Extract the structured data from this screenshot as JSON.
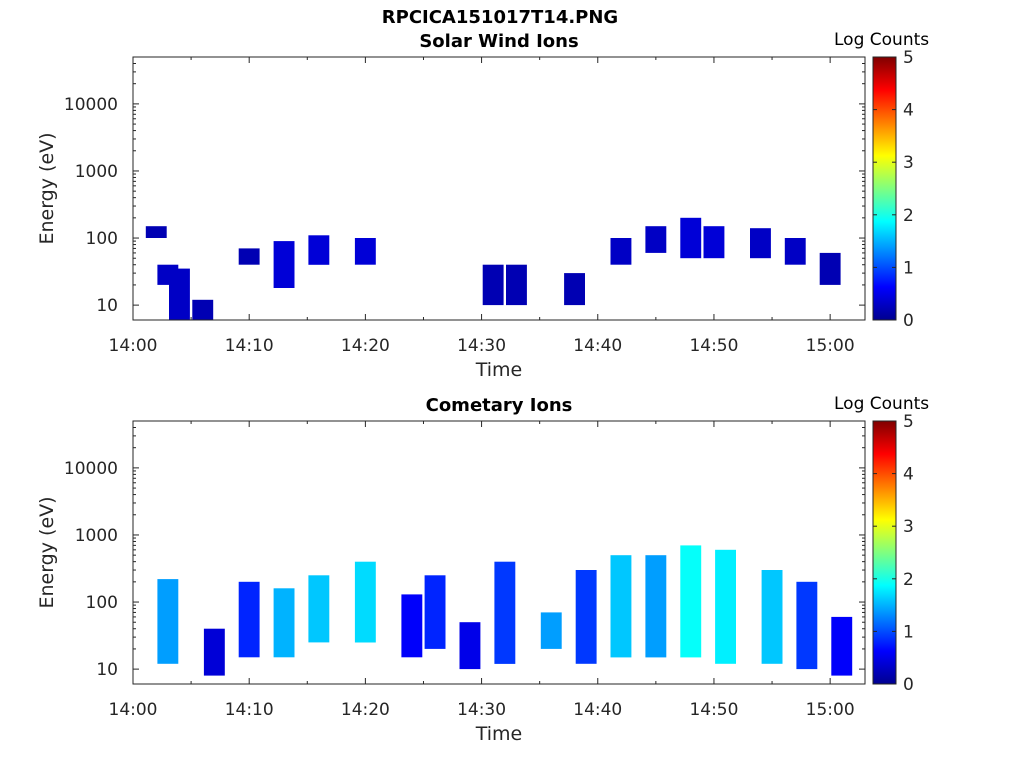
{
  "figure": {
    "title": "RPCICA151017T14.PNG"
  },
  "colorbar": {
    "label": "Log Counts",
    "ticks": [
      "0",
      "1",
      "2",
      "3",
      "4",
      "5"
    ]
  },
  "chart_data": [
    {
      "type": "heatmap",
      "title": "Solar Wind Ions",
      "xlabel": "Time",
      "ylabel": "Energy (eV)",
      "yscale": "log",
      "xlim": [
        "14:00",
        "15:03"
      ],
      "ylim": [
        6,
        50000
      ],
      "xticks": [
        "14:00",
        "14:10",
        "14:20",
        "14:30",
        "14:40",
        "14:50",
        "15:00"
      ],
      "yticks": [
        "10",
        "100",
        "1000",
        "10000"
      ],
      "colorbar_label": "Log Counts",
      "clim": [
        0,
        5
      ],
      "cells": [
        {
          "t": "14:02",
          "emin": 100,
          "emax": 150,
          "z": 0.2
        },
        {
          "t": "14:03",
          "emin": 20,
          "emax": 40,
          "z": 0.3
        },
        {
          "t": "14:04",
          "emin": 6,
          "emax": 35,
          "z": 0.3
        },
        {
          "t": "14:06",
          "emin": 6,
          "emax": 12,
          "z": 0.2
        },
        {
          "t": "14:10",
          "emin": 40,
          "emax": 70,
          "z": 0.2
        },
        {
          "t": "14:13",
          "emin": 18,
          "emax": 90,
          "z": 0.4
        },
        {
          "t": "14:16",
          "emin": 40,
          "emax": 110,
          "z": 0.4
        },
        {
          "t": "14:20",
          "emin": 40,
          "emax": 100,
          "z": 0.4
        },
        {
          "t": "14:31",
          "emin": 10,
          "emax": 40,
          "z": 0.2
        },
        {
          "t": "14:33",
          "emin": 10,
          "emax": 40,
          "z": 0.2
        },
        {
          "t": "14:38",
          "emin": 10,
          "emax": 30,
          "z": 0.2
        },
        {
          "t": "14:42",
          "emin": 40,
          "emax": 100,
          "z": 0.3
        },
        {
          "t": "14:45",
          "emin": 60,
          "emax": 150,
          "z": 0.3
        },
        {
          "t": "14:48",
          "emin": 50,
          "emax": 200,
          "z": 0.4
        },
        {
          "t": "14:50",
          "emin": 50,
          "emax": 150,
          "z": 0.4
        },
        {
          "t": "14:54",
          "emin": 50,
          "emax": 140,
          "z": 0.3
        },
        {
          "t": "14:57",
          "emin": 40,
          "emax": 100,
          "z": 0.3
        },
        {
          "t": "15:00",
          "emin": 20,
          "emax": 60,
          "z": 0.2
        }
      ]
    },
    {
      "type": "heatmap",
      "title": "Cometary Ions",
      "xlabel": "Time",
      "ylabel": "Energy (eV)",
      "yscale": "log",
      "xlim": [
        "14:00",
        "15:03"
      ],
      "ylim": [
        6,
        50000
      ],
      "xticks": [
        "14:00",
        "14:10",
        "14:20",
        "14:30",
        "14:40",
        "14:50",
        "15:00"
      ],
      "yticks": [
        "10",
        "100",
        "1000",
        "10000"
      ],
      "colorbar_label": "Log Counts",
      "clim": [
        0,
        5
      ],
      "cells": [
        {
          "t": "14:03",
          "emin": 12,
          "emax": 220,
          "z": 1.4
        },
        {
          "t": "14:07",
          "emin": 8,
          "emax": 40,
          "z": 0.4
        },
        {
          "t": "14:10",
          "emin": 15,
          "emax": 200,
          "z": 0.8
        },
        {
          "t": "14:13",
          "emin": 15,
          "emax": 160,
          "z": 1.5
        },
        {
          "t": "14:16",
          "emin": 25,
          "emax": 250,
          "z": 1.6
        },
        {
          "t": "14:20",
          "emin": 25,
          "emax": 400,
          "z": 1.7
        },
        {
          "t": "14:24",
          "emin": 15,
          "emax": 130,
          "z": 0.6
        },
        {
          "t": "14:26",
          "emin": 20,
          "emax": 250,
          "z": 0.8
        },
        {
          "t": "14:29",
          "emin": 10,
          "emax": 50,
          "z": 0.5
        },
        {
          "t": "14:32",
          "emin": 12,
          "emax": 400,
          "z": 0.9
        },
        {
          "t": "14:36",
          "emin": 20,
          "emax": 70,
          "z": 1.4
        },
        {
          "t": "14:39",
          "emin": 12,
          "emax": 300,
          "z": 0.9
        },
        {
          "t": "14:42",
          "emin": 15,
          "emax": 500,
          "z": 1.6
        },
        {
          "t": "14:45",
          "emin": 15,
          "emax": 500,
          "z": 1.4
        },
        {
          "t": "14:48",
          "emin": 15,
          "emax": 700,
          "z": 1.9
        },
        {
          "t": "14:51",
          "emin": 12,
          "emax": 600,
          "z": 1.8
        },
        {
          "t": "14:55",
          "emin": 12,
          "emax": 300,
          "z": 1.6
        },
        {
          "t": "14:58",
          "emin": 10,
          "emax": 200,
          "z": 0.9
        },
        {
          "t": "15:01",
          "emin": 8,
          "emax": 60,
          "z": 0.6
        }
      ]
    }
  ]
}
